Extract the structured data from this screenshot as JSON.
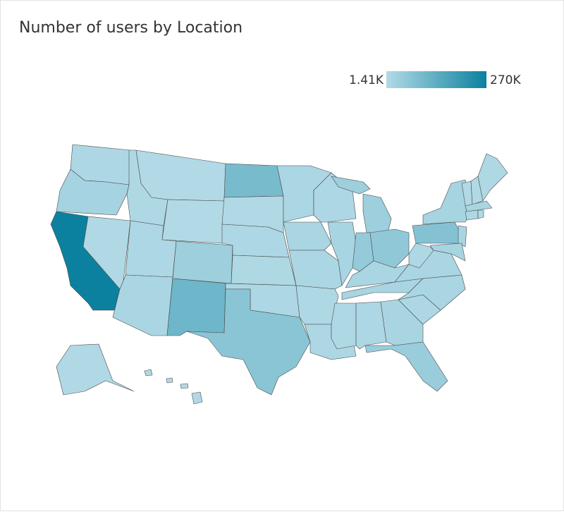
{
  "chart_data": {
    "type": "choropleth",
    "title": "Number of users by Location",
    "values": [
      9000,
      22000,
      270000,
      5000,
      6000,
      3000,
      1410,
      9000,
      14000,
      35000,
      110000,
      95000,
      4000,
      10000,
      8000,
      9000,
      65000,
      12000,
      15000,
      13000,
      7000,
      10000,
      10000,
      18000,
      35000,
      50000,
      55000,
      14000,
      16000,
      6000,
      9000,
      16000,
      42000,
      9000,
      14000,
      15000,
      8000,
      75000,
      20000,
      18000,
      20000,
      3000,
      5000,
      6000,
      16000,
      9000,
      4000,
      4000,
      5000
    ],
    "colorscale": {
      "range": [
        {
          "value": 1410,
          "label": "1.41K"
        },
        {
          "value": 270000,
          "label": "270K"
        }
      ],
      "colors": [
        "#b2dae6",
        "#0b819f"
      ]
    }
  }
}
